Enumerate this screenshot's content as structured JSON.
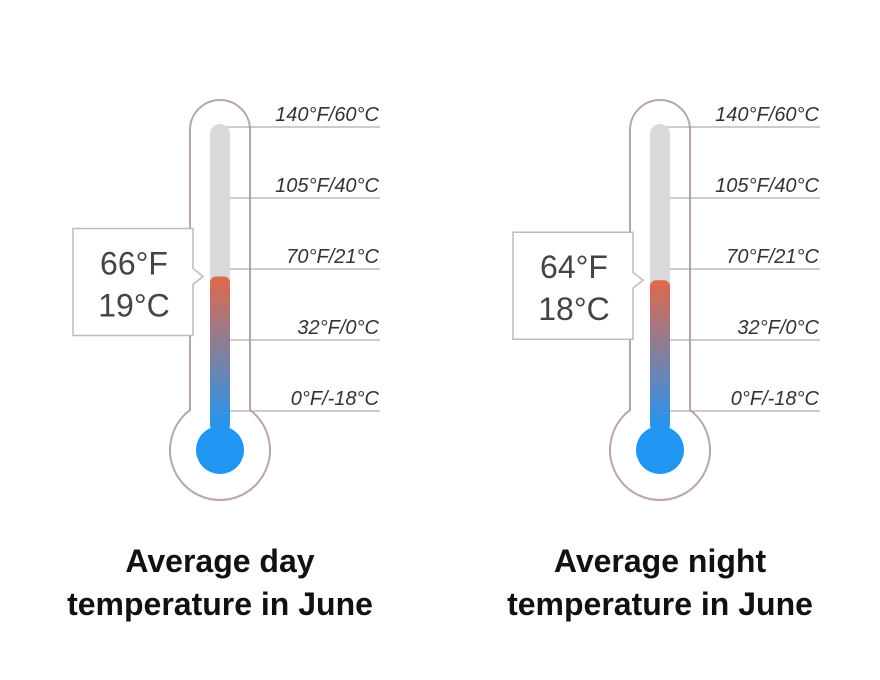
{
  "chart_data": [
    {
      "type": "thermometer",
      "title": "Average day temperature in June",
      "value": 66,
      "value_label": [
        "66°F",
        "19°C"
      ],
      "ticks": [
        {
          "value": 140,
          "label": "140°F/60°C"
        },
        {
          "value": 105,
          "label": "105°F/40°C"
        },
        {
          "value": 70,
          "label": "70°F/21°C"
        },
        {
          "value": 32,
          "label": "32°F/0°C"
        },
        {
          "value": 0,
          "label": "0°F/-18°C"
        }
      ],
      "fill_colors": [
        "#e0694b",
        "#2196f3"
      ],
      "empty_color": "#d9d9d9"
    },
    {
      "type": "thermometer",
      "title": "Average night temperature in June",
      "value": 64,
      "value_label": [
        "64°F",
        "18°C"
      ],
      "ticks": [
        {
          "value": 140,
          "label": "140°F/60°C"
        },
        {
          "value": 105,
          "label": "105°F/40°C"
        },
        {
          "value": 70,
          "label": "70°F/21°C"
        },
        {
          "value": 32,
          "label": "32°F/0°C"
        },
        {
          "value": 0,
          "label": "0°F/-18°C"
        }
      ],
      "fill_colors": [
        "#e0694b",
        "#2196f3"
      ],
      "empty_color": "#d9d9d9"
    }
  ]
}
